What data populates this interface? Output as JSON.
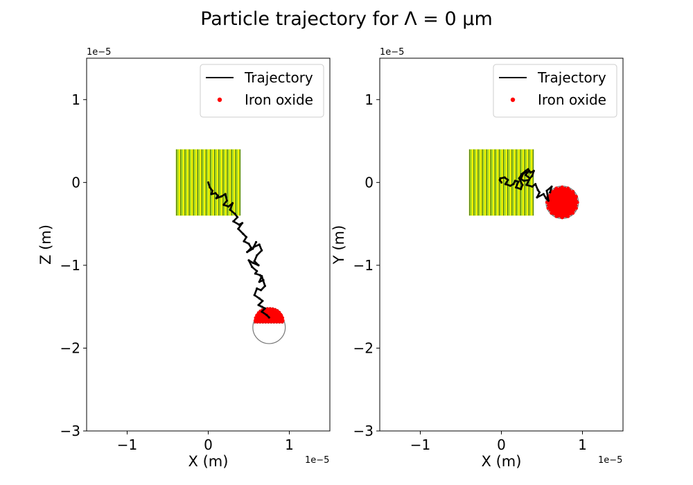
{
  "figure": {
    "title": "Particle trajectory for Λ = 0 μm"
  },
  "colors": {
    "trajectory": "#000000",
    "iron_oxide": "#ff0000",
    "stripe_green": "#7fd13b",
    "stripe_yellow": "#f2f200",
    "stripe_dark": "#2b6e2b",
    "sphere_outline": "#777777"
  },
  "chart_data": [
    {
      "type": "scatter",
      "panel": "left",
      "xlabel": "X (m)",
      "ylabel": "Z (m)",
      "x_offset_label": "1e−5",
      "y_offset_label": "1e−5",
      "xlim": [
        -1.5,
        1.5
      ],
      "ylim": [
        -3.0,
        1.5
      ],
      "xticks": [
        -1,
        0,
        1
      ],
      "xtick_labels": [
        "−1",
        "0",
        "1"
      ],
      "yticks": [
        -3,
        -2,
        -1,
        0,
        1
      ],
      "ytick_labels": [
        "−3",
        "−2",
        "−1",
        "0",
        "1"
      ],
      "grid": false,
      "legend": {
        "placement": "top-right",
        "entries": [
          "Trajectory",
          "Iron oxide"
        ]
      },
      "fiber_region": {
        "x": [
          -0.4,
          0.4
        ],
        "y": [
          -0.4,
          0.4
        ]
      },
      "sphere": {
        "cx": 0.75,
        "cy": -1.75,
        "r": 0.2
      },
      "iron_oxide_cluster": {
        "cx": 0.75,
        "cy": -1.65,
        "r": 0.18,
        "shape": "cap"
      },
      "series": [
        {
          "name": "Trajectory",
          "x": [
            0.0,
            0.02,
            0.05,
            0.04,
            0.09,
            0.12,
            0.1,
            0.16,
            0.21,
            0.23,
            0.19,
            0.25,
            0.3,
            0.27,
            0.33,
            0.36,
            0.31,
            0.38,
            0.42,
            0.37,
            0.43,
            0.47,
            0.44,
            0.5,
            0.53,
            0.48,
            0.55,
            0.59,
            0.56,
            0.63,
            0.66,
            0.6,
            0.57,
            0.62,
            0.55,
            0.5,
            0.54,
            0.6,
            0.58,
            0.64,
            0.68,
            0.63,
            0.66,
            0.7,
            0.65,
            0.6,
            0.57,
            0.63,
            0.67,
            0.62,
            0.66,
            0.7,
            0.66,
            0.72,
            0.75
          ],
          "y": [
            0.0,
            -0.06,
            -0.1,
            -0.14,
            -0.13,
            -0.16,
            -0.19,
            -0.17,
            -0.14,
            -0.22,
            -0.27,
            -0.29,
            -0.25,
            -0.33,
            -0.38,
            -0.42,
            -0.47,
            -0.51,
            -0.49,
            -0.56,
            -0.62,
            -0.66,
            -0.71,
            -0.74,
            -0.79,
            -0.84,
            -0.8,
            -0.72,
            -0.78,
            -0.75,
            -0.82,
            -0.88,
            -0.95,
            -1.0,
            -0.97,
            -0.94,
            -1.02,
            -1.07,
            -1.1,
            -1.12,
            -1.18,
            -1.2,
            -1.13,
            -1.25,
            -1.3,
            -1.28,
            -1.36,
            -1.4,
            -1.43,
            -1.48,
            -1.5,
            -1.52,
            -1.56,
            -1.6,
            -1.63
          ]
        }
      ]
    },
    {
      "type": "scatter",
      "panel": "right",
      "xlabel": "X (m)",
      "ylabel": "Y (m)",
      "x_offset_label": "1e−5",
      "y_offset_label": "1e−5",
      "xlim": [
        -1.5,
        1.5
      ],
      "ylim": [
        -3.0,
        1.5
      ],
      "xticks": [
        -1,
        0,
        1
      ],
      "xtick_labels": [
        "−1",
        "0",
        "1"
      ],
      "yticks": [
        -3,
        -2,
        -1,
        0,
        1
      ],
      "ytick_labels": [
        "−3",
        "−2",
        "−1",
        "0",
        "1"
      ],
      "grid": false,
      "legend": {
        "placement": "top-right",
        "entries": [
          "Trajectory",
          "Iron oxide"
        ]
      },
      "fiber_region": {
        "x": [
          -0.4,
          0.4
        ],
        "y": [
          -0.4,
          0.4
        ]
      },
      "sphere": {
        "cx": 0.75,
        "cy": -0.24,
        "r": 0.2
      },
      "iron_oxide_cluster": {
        "cx": 0.75,
        "cy": -0.24,
        "r": 0.19,
        "shape": "full"
      },
      "series": [
        {
          "name": "Trajectory",
          "x": [
            0.0,
            -0.02,
            -0.01,
            0.04,
            0.08,
            0.05,
            0.11,
            0.15,
            0.17,
            0.21,
            0.18,
            0.24,
            0.26,
            0.22,
            0.25,
            0.3,
            0.33,
            0.36,
            0.4,
            0.38,
            0.35,
            0.3,
            0.33,
            0.27,
            0.24,
            0.28,
            0.34,
            0.31,
            0.38,
            0.42,
            0.45,
            0.47,
            0.44,
            0.52,
            0.55,
            0.58,
            0.56,
            0.62,
            0.6
          ],
          "y": [
            0.0,
            0.03,
            0.05,
            0.06,
            0.03,
            -0.02,
            -0.04,
            -0.02,
            0.02,
            0.01,
            -0.06,
            -0.08,
            -0.03,
            0.05,
            0.1,
            0.14,
            0.16,
            0.12,
            0.14,
            0.08,
            0.05,
            0.09,
            0.13,
            0.11,
            0.04,
            0.02,
            0.03,
            -0.03,
            -0.05,
            -0.02,
            -0.09,
            -0.12,
            -0.18,
            -0.14,
            -0.19,
            -0.22,
            -0.1,
            -0.05,
            -0.12
          ]
        }
      ]
    }
  ]
}
